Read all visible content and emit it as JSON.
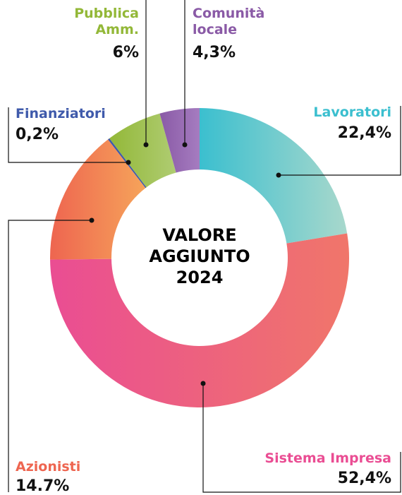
{
  "chart_data": {
    "type": "donut",
    "title_lines": [
      "VALORE",
      "AGGIUNTO",
      "2024"
    ],
    "series": [
      {
        "name": "Lavoratori",
        "values": [
          22.4
        ],
        "value_labels": [
          "22,4%"
        ],
        "color": "#3bbfcf",
        "color_end": "#a8d8cc"
      },
      {
        "name": "Sistema Impresa",
        "values": [
          52.4
        ],
        "value_labels": [
          "52,4%"
        ],
        "color": "#ea4d93",
        "color_end": "#f0766a"
      },
      {
        "name": "Azionisti",
        "values": [
          14.7
        ],
        "value_labels": [
          "14.7%"
        ],
        "color": "#ee6550",
        "color_end": "#f6a45a"
      },
      {
        "name": "Finanziatori",
        "values": [
          0.2
        ],
        "value_labels": [
          "0,2%"
        ],
        "color": "#3f5aab",
        "color_end": "#3f5aab"
      },
      {
        "name": "Pubblica Amm.",
        "values": [
          6
        ],
        "value_labels": [
          "6%"
        ],
        "color": "#93b838",
        "color_end": "#afcc72"
      },
      {
        "name": "Comunità locale",
        "values": [
          4.3
        ],
        "value_labels": [
          "4,3%"
        ],
        "color": "#8a5aa6",
        "color_end": "#a57cc0"
      }
    ]
  }
}
